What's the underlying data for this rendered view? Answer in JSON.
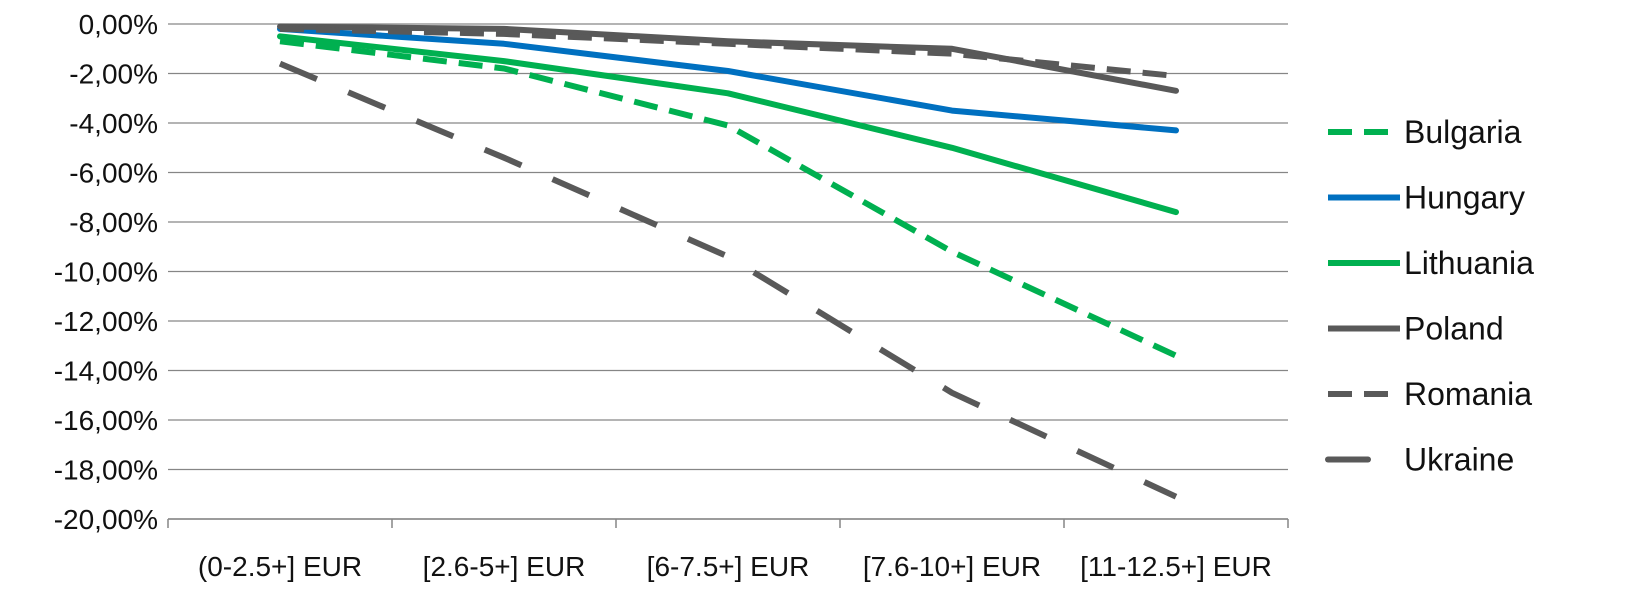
{
  "chart_data": {
    "type": "line",
    "title": "",
    "xlabel": "",
    "ylabel": "",
    "categories": [
      "(0-2.5+] EUR",
      "[2.6-5+] EUR",
      "[6-7.5+] EUR",
      "[7.6-10+] EUR",
      "[11-12.5+] EUR"
    ],
    "ylim": [
      -20,
      0
    ],
    "yticks": [
      0,
      -2,
      -4,
      -6,
      -8,
      -10,
      -12,
      -14,
      -16,
      -18,
      -20
    ],
    "ytick_labels": [
      "0,00%",
      "-2,00%",
      "-4,00%",
      "-6,00%",
      "-8,00%",
      "-10,00%",
      "-12,00%",
      "-14,00%",
      "-16,00%",
      "-18,00%",
      "-20,00%"
    ],
    "grid": true,
    "legend_position": "right",
    "series": [
      {
        "name": "Bulgaria",
        "values": [
          -0.7,
          -1.8,
          -4.1,
          -9.2,
          -13.4
        ],
        "color": "#00b050",
        "dash": "dashed"
      },
      {
        "name": "Hungary",
        "values": [
          -0.2,
          -0.8,
          -1.9,
          -3.5,
          -4.3
        ],
        "color": "#0070c0",
        "dash": "solid"
      },
      {
        "name": "Lithuania",
        "values": [
          -0.5,
          -1.5,
          -2.8,
          -5.0,
          -7.6
        ],
        "color": "#00b050",
        "dash": "solid"
      },
      {
        "name": "Poland",
        "values": [
          -0.1,
          -0.2,
          -0.7,
          -1.0,
          -2.7
        ],
        "color": "#595959",
        "dash": "solid"
      },
      {
        "name": "Romania",
        "values": [
          -0.2,
          -0.4,
          -0.8,
          -1.2,
          -2.1
        ],
        "color": "#595959",
        "dash": "dashed"
      },
      {
        "name": "Ukraine",
        "values": [
          -1.6,
          -5.4,
          -9.4,
          -14.9,
          -19.1
        ],
        "color": "#595959",
        "dash": "longdash"
      }
    ]
  }
}
